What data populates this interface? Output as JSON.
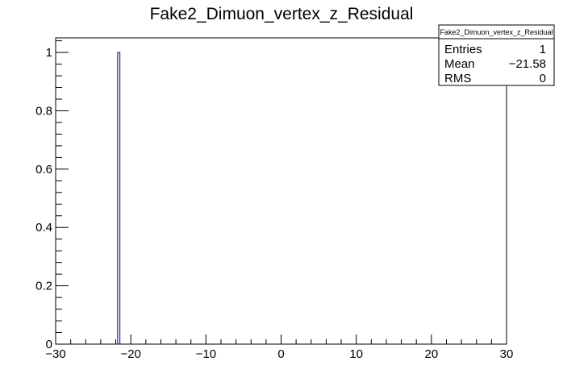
{
  "chart_data": {
    "type": "bar",
    "title": "Fake2_Dimuon_vertex_z_Residual",
    "xlabel": "",
    "ylabel": "",
    "xlim": [
      -30,
      30
    ],
    "ylim": [
      0,
      1.05
    ],
    "x_ticks": [
      -30,
      -20,
      -10,
      0,
      10,
      20,
      30
    ],
    "x_tick_labels": [
      "−30",
      "−20",
      "−10",
      "0",
      "10",
      "20",
      "30"
    ],
    "y_ticks": [
      0,
      0.2,
      0.4,
      0.6,
      0.8,
      1
    ],
    "y_tick_labels": [
      "0",
      "0.2",
      "0.4",
      "0.6",
      "0.8",
      "1"
    ],
    "bins": [
      {
        "x_low": -21.75,
        "x_high": -21.45,
        "value": 1
      }
    ],
    "line_color": "#000080",
    "grid": false,
    "legend": "none"
  },
  "stats_box": {
    "title": "Fake2_Dimuon_vertex_z_Residual",
    "rows": [
      {
        "label": "Entries",
        "value": "1"
      },
      {
        "label": "Mean",
        "value": "−21.58"
      },
      {
        "label": "RMS",
        "value": "0"
      }
    ]
  }
}
